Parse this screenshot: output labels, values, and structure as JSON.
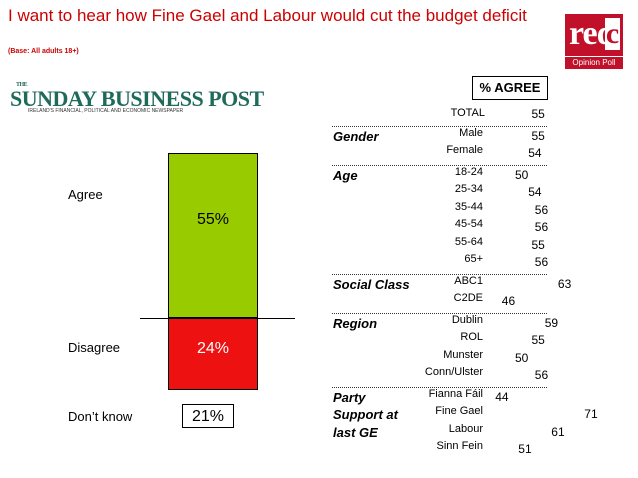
{
  "header": {
    "title": "I want to hear how Fine Gael and Labour would cut the budget deficit",
    "base": "(Base: All adults 18+)",
    "logo_text": "red",
    "logo_c": "c",
    "logo_sub": "Opinion Poll",
    "masthead_the": "THE",
    "masthead": "SUNDAY BUSINESS POST",
    "masthead_sub": "IRELAND'S FINANCIAL, POLITICAL AND ECONOMIC NEWSPAPER"
  },
  "colors": {
    "title": "#cc0000",
    "agree": "#99cc00",
    "disagree": "#ee1111",
    "logo": "#c0102a"
  },
  "chart_data": [
    {
      "type": "bar",
      "stacked": true,
      "categories": [
        "Agree",
        "Disagree",
        "Don't know"
      ],
      "values": [
        55,
        24,
        21
      ],
      "labels": [
        "55%",
        "24%",
        "21%"
      ],
      "display_labels": [
        "Agree",
        "Disagree",
        "Don’t know"
      ]
    },
    {
      "type": "table",
      "column_header": "% AGREE",
      "total": {
        "label": "TOTAL",
        "value": 55
      },
      "groups": [
        {
          "name": "Gender",
          "rows": [
            {
              "label": "Male",
              "value": 55
            },
            {
              "label": "Female",
              "value": 54
            }
          ]
        },
        {
          "name": "Age",
          "rows": [
            {
              "label": "18-24",
              "value": 50
            },
            {
              "label": "25-34",
              "value": 54
            },
            {
              "label": "35-44",
              "value": 56
            },
            {
              "label": "45-54",
              "value": 56
            },
            {
              "label": "55-64",
              "value": 55
            },
            {
              "label": "65+",
              "value": 56
            }
          ]
        },
        {
          "name": "Social Class",
          "rows": [
            {
              "label": "ABC1",
              "value": 63
            },
            {
              "label": "C2DE",
              "value": 46
            }
          ]
        },
        {
          "name": "Region",
          "rows": [
            {
              "label": "Dublin",
              "value": 59
            },
            {
              "label": "ROL",
              "value": 55
            },
            {
              "label": "Munster",
              "value": 50
            },
            {
              "label": "Conn/Ulster",
              "value": 56
            }
          ]
        },
        {
          "name": "Party Support at last GE",
          "name_lines": [
            "Party",
            "Support at",
            "last GE"
          ],
          "rows": [
            {
              "label": "Fianna Fáil",
              "value": 44
            },
            {
              "label": "Fine Gael",
              "value": 71
            },
            {
              "label": "Labour",
              "value": 61
            },
            {
              "label": "Sinn Fein",
              "value": 51
            }
          ]
        }
      ]
    }
  ]
}
